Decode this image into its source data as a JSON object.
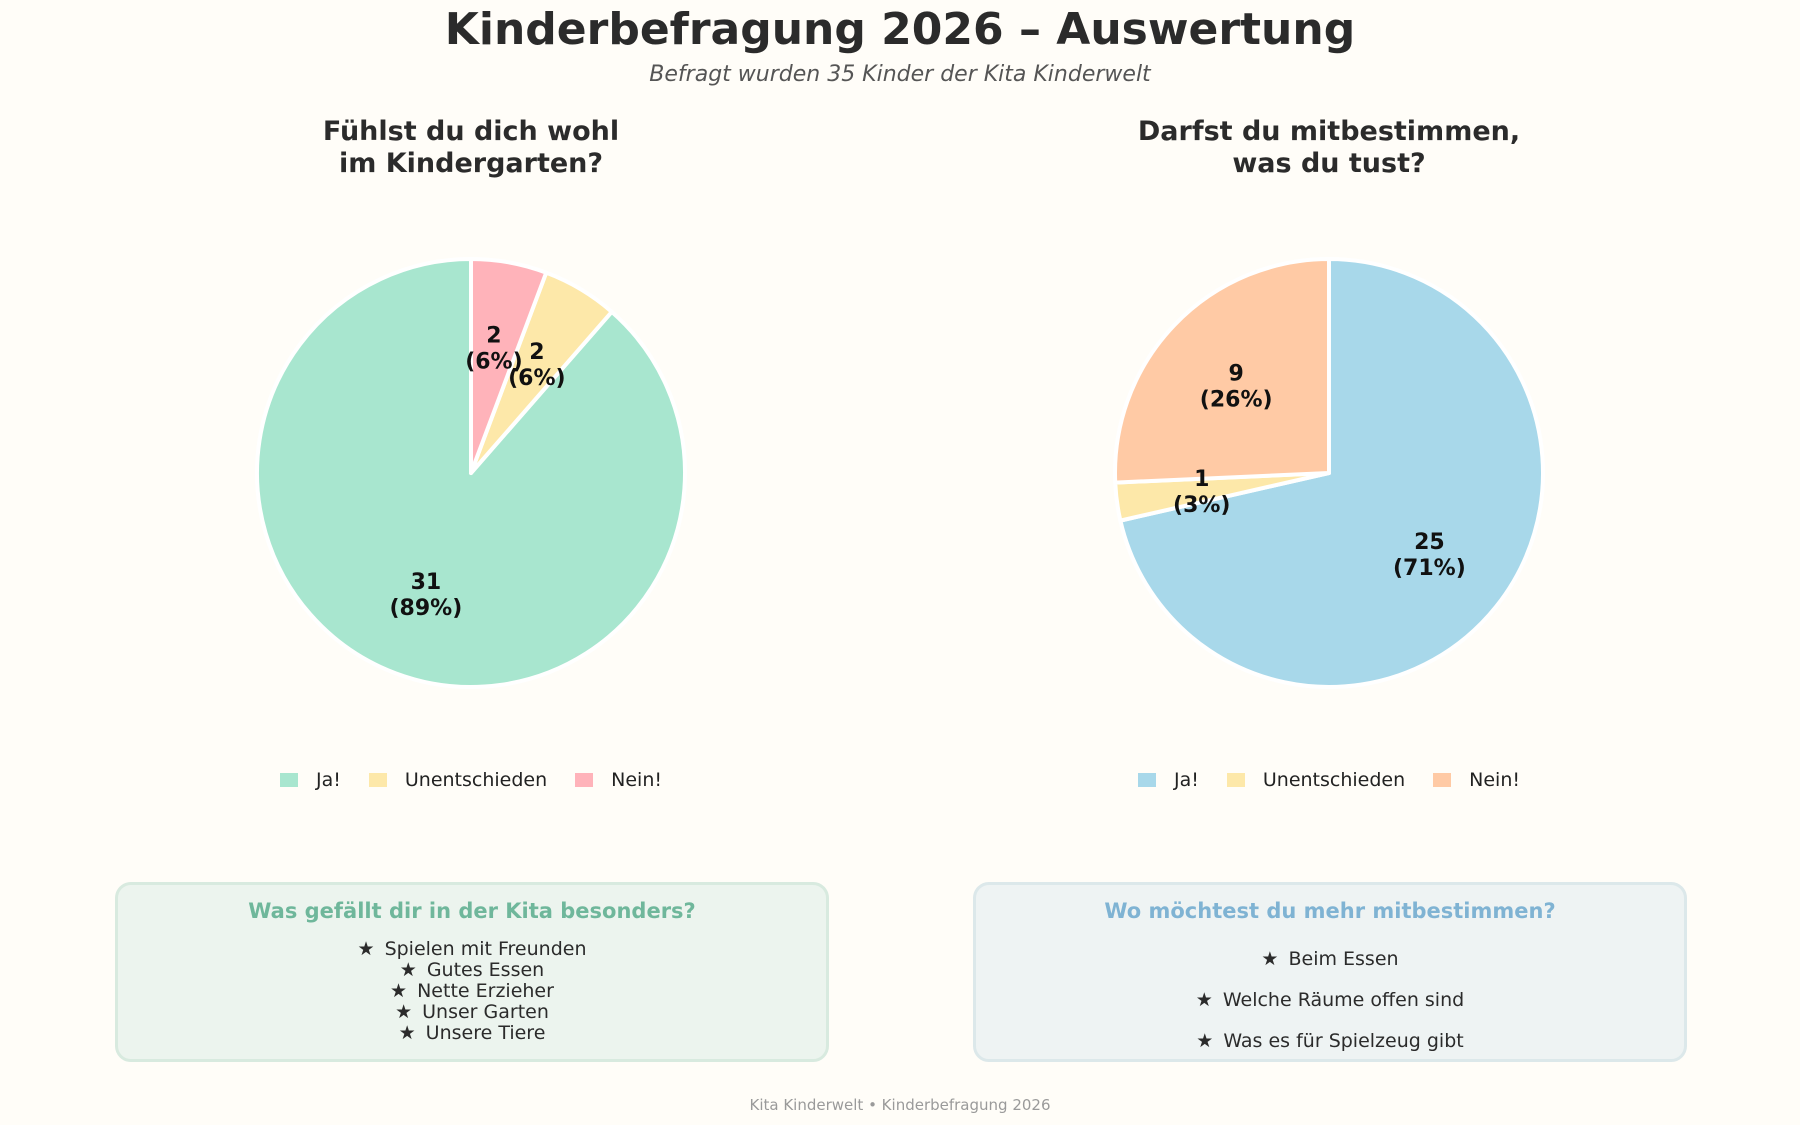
{
  "title": "Kinderbefragung 2026 – Auswertung",
  "subtitle": "Befragt wurden 35 Kinder der Kita Kinderwelt",
  "chart_data": [
    {
      "type": "pie",
      "title_lines": [
        "Fühlst du dich wohl",
        "im Kindergarten?"
      ],
      "total": 35,
      "start_angle_deg": 90,
      "direction": "counterclockwise",
      "legend_position": "bottom",
      "slices": [
        {
          "label": "Ja!",
          "value": 31,
          "percent_label": "(89%)",
          "color": "#a8e6cf"
        },
        {
          "label": "Unentschieden",
          "value": 2,
          "percent_label": "(6%)",
          "color": "#fde8a9"
        },
        {
          "label": "Nein!",
          "value": 2,
          "percent_label": "(6%)",
          "color": "#ffb3ba"
        }
      ]
    },
    {
      "type": "pie",
      "title_lines": [
        "Darfst du mitbestimmen,",
        "was du tust?"
      ],
      "total": 35,
      "start_angle_deg": 90,
      "direction": "clockwise",
      "legend_position": "bottom",
      "slices": [
        {
          "label": "Ja!",
          "value": 25,
          "percent_label": "(71%)",
          "color": "#a8d8ea"
        },
        {
          "label": "Unentschieden",
          "value": 1,
          "percent_label": "(3%)",
          "color": "#fde8a9"
        },
        {
          "label": "Nein!",
          "value": 9,
          "percent_label": "(26%)",
          "color": "#ffcaa5"
        }
      ]
    }
  ],
  "boxes": [
    {
      "title": "Was gefällt dir in der Kita besonders?",
      "title_color": "#6fb79b",
      "background": "#ecf4ee",
      "border": "#d8eadf",
      "bullet": "★",
      "items": [
        "Spielen mit Freunden",
        "Gutes Essen",
        "Nette Erzieher",
        "Unser Garten",
        "Unsere Tiere"
      ]
    },
    {
      "title": "Wo möchtest du mehr mitbestimmen?",
      "title_color": "#7fb3d3",
      "background": "#eef3f3",
      "border": "#dce8ea",
      "bullet": "★",
      "items": [
        "Beim Essen",
        "Welche Räume offen sind",
        "Was es für Spielzeug gibt"
      ]
    }
  ],
  "footer": "Kita Kinderwelt  •  Kinderbefragung 2026"
}
